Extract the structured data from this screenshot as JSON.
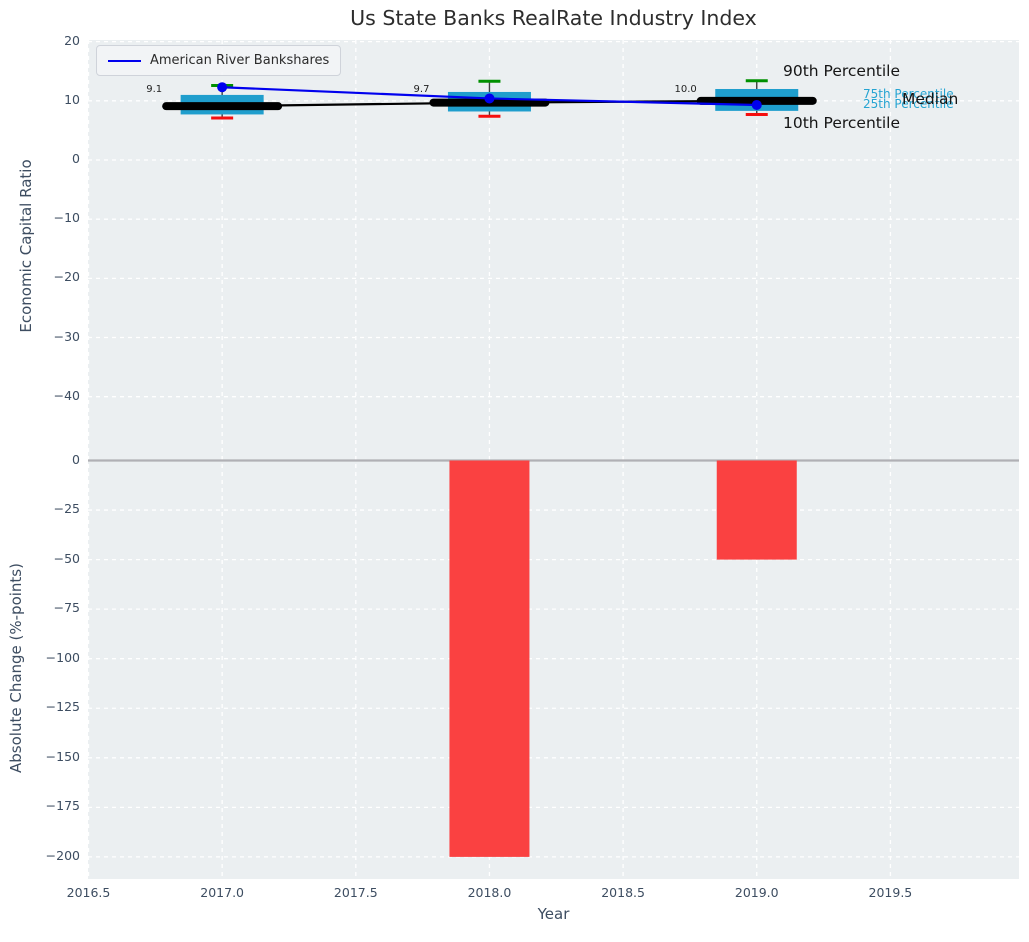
{
  "title": "Us State Banks RealRate Industry Index",
  "legend": {
    "label": "American River Bankshares"
  },
  "annotations": {
    "p90": "90th Percentile",
    "p75": "75th Percentile",
    "p25": "25th Percentile",
    "median": "Median",
    "p10": "10th Percentile"
  },
  "colors": {
    "series_line": "#0000ee",
    "box_fill": "#1f9ecd",
    "whisker_line": "#3f3f3f",
    "cap_top_green": "#009000",
    "cap_bottom_red": "#f50f0f",
    "median_line": "#000000",
    "bar_negative": "#fa4141",
    "plot_bg": "#ebeff1",
    "grid": "#ffffff",
    "zero_line": "#b0b0b5",
    "tick_text": "#3d4d61",
    "annotation_cyan": "#25a4d2"
  },
  "xlim": [
    2016.5,
    2019.99
  ],
  "chart_data": [
    {
      "type": "box",
      "title": "Us State Banks RealRate Industry Index",
      "ylabel": "Economic Capital Ratio",
      "ylim": [
        -50,
        20.5
      ],
      "yticks": [
        20,
        10,
        0,
        -10,
        -20,
        -30,
        -40
      ],
      "grid": true,
      "legend_position": "upper left",
      "categories": [
        2017,
        2018,
        2019
      ],
      "boxes": [
        {
          "year": 2017,
          "p10": 7.1,
          "p25": 7.7,
          "median": 9.1,
          "p75": 11.0,
          "p90": 12.6,
          "label": "9.1"
        },
        {
          "year": 2018,
          "p10": 7.4,
          "p25": 8.2,
          "median": 9.7,
          "p75": 11.5,
          "p90": 13.3,
          "label": "9.7"
        },
        {
          "year": 2019,
          "p10": 7.7,
          "p25": 8.3,
          "median": 10.0,
          "p75": 12.0,
          "p90": 13.4,
          "label": "10.0"
        }
      ],
      "series": [
        {
          "name": "American River Bankshares",
          "x": [
            2017,
            2018,
            2019
          ],
          "values": [
            12.3,
            10.4,
            9.3
          ]
        }
      ]
    },
    {
      "type": "bar",
      "ylabel": "Absolute Change (%-points)",
      "xlabel": "Year",
      "ylim": [
        -212,
        6
      ],
      "yticks": [
        0,
        -25,
        -50,
        -75,
        -100,
        -125,
        -150,
        -175,
        -200
      ],
      "xticks": [
        2016.5,
        2017,
        2017.5,
        2018,
        2018.5,
        2019,
        2019.5
      ],
      "xtick_labels": [
        "2016.5",
        "2017.0",
        "2017.5",
        "2018.0",
        "2018.5",
        "2019.0",
        "2019.5"
      ],
      "x": [
        2018,
        2019
      ],
      "values": [
        -200,
        -50
      ]
    }
  ]
}
